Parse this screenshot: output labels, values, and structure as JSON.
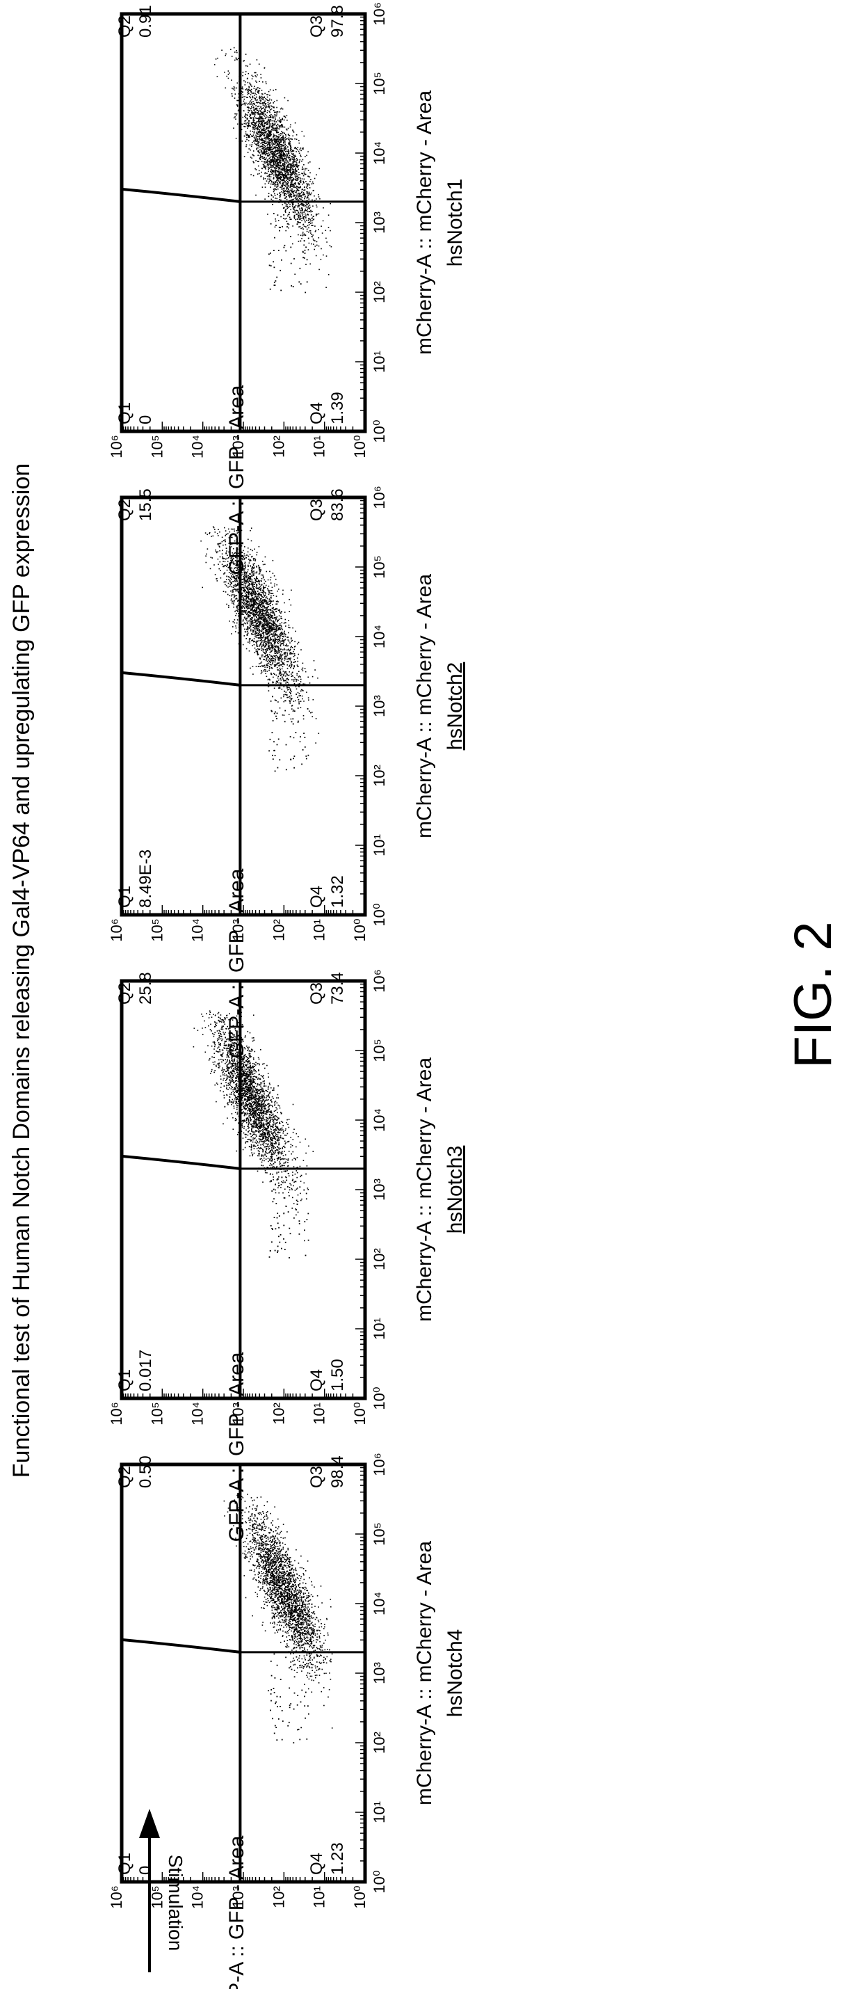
{
  "figure": {
    "title": "Functional test of Human Notch Domains releasing Gal4-VP64 and upregulating GFP expression",
    "caption": "FIG. 2",
    "stimulation_label": "Stimulation",
    "colors": {
      "ink": "#000000",
      "background": "#ffffff"
    }
  },
  "chart_data": [
    {
      "type": "scatter",
      "scale": "log",
      "name": "hsNotch1",
      "name_underlined": false,
      "xlabel": "mCherry-A :: mCherry - Area",
      "ylabel": "GFP-A :: GFP - Area",
      "xlim": [
        1,
        1000000
      ],
      "ylim": [
        1,
        1000000
      ],
      "x_ticks": [
        "10⁰",
        "10¹",
        "10²",
        "10³",
        "10⁴",
        "10⁵",
        "10⁶"
      ],
      "y_ticks": [
        "10⁰",
        "10¹",
        "10²",
        "10³",
        "10⁴",
        "10⁵",
        "10⁶"
      ],
      "gate_x": 2000,
      "gate_y": 1200,
      "quadrants": {
        "Q1": "0",
        "Q2": "0.91",
        "Q3": "97.8",
        "Q4": "1.39"
      },
      "population": {
        "center_log_x": 4.0,
        "center_log_y": 2.2
      }
    },
    {
      "type": "scatter",
      "scale": "log",
      "name": "hsNotch2",
      "name_underlined": true,
      "xlabel": "mCherry-A :: mCherry - Area",
      "ylabel": "GFP-A :: GFP - Area",
      "xlim": [
        1,
        1000000
      ],
      "ylim": [
        1,
        1000000
      ],
      "x_ticks": [
        "10⁰",
        "10¹",
        "10²",
        "10³",
        "10⁴",
        "10⁵",
        "10⁶"
      ],
      "y_ticks": [
        "10⁰",
        "10¹",
        "10²",
        "10³",
        "10⁴",
        "10⁵",
        "10⁶"
      ],
      "gate_x": 2000,
      "gate_y": 1200,
      "quadrants": {
        "Q1": "8.49E-3",
        "Q2": "15.5",
        "Q3": "83.6",
        "Q4": "1.32"
      },
      "population": {
        "center_log_x": 4.3,
        "center_log_y": 2.6
      }
    },
    {
      "type": "scatter",
      "scale": "log",
      "name": "hsNotch3",
      "name_underlined": true,
      "xlabel": "mCherry-A :: mCherry - Area",
      "ylabel": "GFP-A :: GFP - Area",
      "xlim": [
        1,
        1000000
      ],
      "ylim": [
        1,
        1000000
      ],
      "x_ticks": [
        "10⁰",
        "10¹",
        "10²",
        "10³",
        "10⁴",
        "10⁵",
        "10⁶"
      ],
      "y_ticks": [
        "10⁰",
        "10¹",
        "10²",
        "10³",
        "10⁴",
        "10⁵",
        "10⁶"
      ],
      "gate_x": 2000,
      "gate_y": 1200,
      "quadrants": {
        "Q1": "0.017",
        "Q2": "25.8",
        "Q3": "73.4",
        "Q4": "1.50"
      },
      "population": {
        "center_log_x": 4.3,
        "center_log_y": 2.8
      }
    },
    {
      "type": "scatter",
      "scale": "log",
      "name": "hsNotch4",
      "name_underlined": false,
      "xlabel": "mCherry-A :: mCherry - Area",
      "ylabel": "GFP-A :: GFP - Area",
      "xlim": [
        1,
        1000000
      ],
      "ylim": [
        1,
        1000000
      ],
      "x_ticks": [
        "10⁰",
        "10¹",
        "10²",
        "10³",
        "10⁴",
        "10⁵",
        "10⁶"
      ],
      "y_ticks": [
        "10⁰",
        "10¹",
        "10²",
        "10³",
        "10⁴",
        "10⁵",
        "10⁶"
      ],
      "gate_x": 2000,
      "gate_y": 1200,
      "quadrants": {
        "Q1": "0",
        "Q2": "0.50",
        "Q3": "98.4",
        "Q4": "1.23"
      },
      "population": {
        "center_log_x": 4.2,
        "center_log_y": 2.0
      }
    }
  ]
}
